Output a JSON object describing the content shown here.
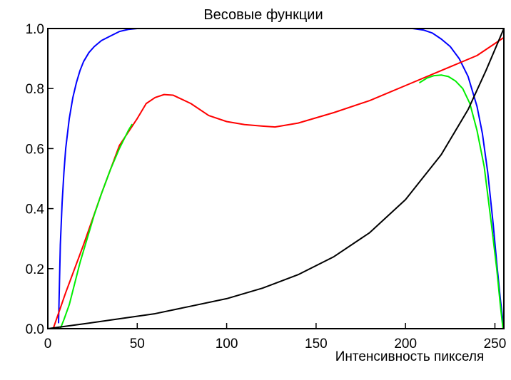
{
  "chart_data": {
    "type": "line",
    "title": "Весовые функции",
    "xlabel": "Интенсивность пикселя",
    "ylabel": "",
    "xlim": [
      0,
      255
    ],
    "ylim": [
      0,
      1
    ],
    "x_ticks": [
      "0",
      "50",
      "100",
      "150",
      "200",
      "250"
    ],
    "y_ticks": [
      "0.0",
      "0.2",
      "0.4",
      "0.6",
      "0.8",
      "1.0"
    ],
    "grid": false,
    "legend": "none",
    "series": [
      {
        "color": "#0000ff",
        "x": [
          6,
          6.5,
          7,
          8,
          9,
          10,
          12,
          14,
          16,
          18,
          20,
          23,
          26,
          30,
          35,
          40,
          45,
          50,
          53
        ],
        "y": [
          0.02,
          0.15,
          0.28,
          0.42,
          0.52,
          0.6,
          0.7,
          0.77,
          0.82,
          0.86,
          0.89,
          0.92,
          0.94,
          0.96,
          0.975,
          0.99,
          0.997,
          1.0,
          1.0
        ]
      },
      {
        "color": "#0000ff",
        "x": [
          204,
          210,
          215,
          220,
          225,
          230,
          235,
          240,
          243,
          246,
          249,
          251,
          253,
          254,
          255
        ],
        "y": [
          1.0,
          0.995,
          0.985,
          0.965,
          0.94,
          0.9,
          0.84,
          0.74,
          0.65,
          0.52,
          0.35,
          0.22,
          0.1,
          0.05,
          0.0
        ]
      },
      {
        "color": "#ff0000",
        "x": [
          3,
          10,
          20,
          30,
          40,
          50,
          55,
          60,
          65,
          70,
          80,
          90,
          100,
          110,
          120,
          127,
          140,
          160,
          180,
          200,
          220,
          240,
          255
        ],
        "y": [
          0.0,
          0.12,
          0.28,
          0.45,
          0.61,
          0.7,
          0.75,
          0.77,
          0.78,
          0.778,
          0.75,
          0.71,
          0.69,
          0.68,
          0.675,
          0.672,
          0.685,
          0.72,
          0.76,
          0.81,
          0.86,
          0.91,
          0.97
        ]
      },
      {
        "color": "#00ee00",
        "x": [
          7,
          9,
          12,
          15,
          18,
          22,
          26,
          30,
          35,
          40,
          45,
          47
        ],
        "y": [
          0.0,
          0.03,
          0.08,
          0.15,
          0.22,
          0.3,
          0.38,
          0.45,
          0.53,
          0.6,
          0.66,
          0.68
        ]
      },
      {
        "color": "#00ee00",
        "x": [
          208,
          212,
          216,
          220,
          224,
          228,
          232,
          236,
          240,
          244,
          248,
          251,
          253,
          254.5
        ],
        "y": [
          0.82,
          0.835,
          0.843,
          0.845,
          0.84,
          0.825,
          0.8,
          0.75,
          0.66,
          0.54,
          0.35,
          0.2,
          0.08,
          0.0
        ]
      },
      {
        "color": "#000000",
        "x": [
          0,
          20,
          40,
          60,
          80,
          100,
          120,
          140,
          160,
          180,
          200,
          220,
          235,
          245,
          255
        ],
        "y": [
          0.0,
          0.016,
          0.033,
          0.05,
          0.075,
          0.1,
          0.135,
          0.18,
          0.24,
          0.32,
          0.43,
          0.58,
          0.73,
          0.86,
          1.0
        ]
      }
    ]
  }
}
